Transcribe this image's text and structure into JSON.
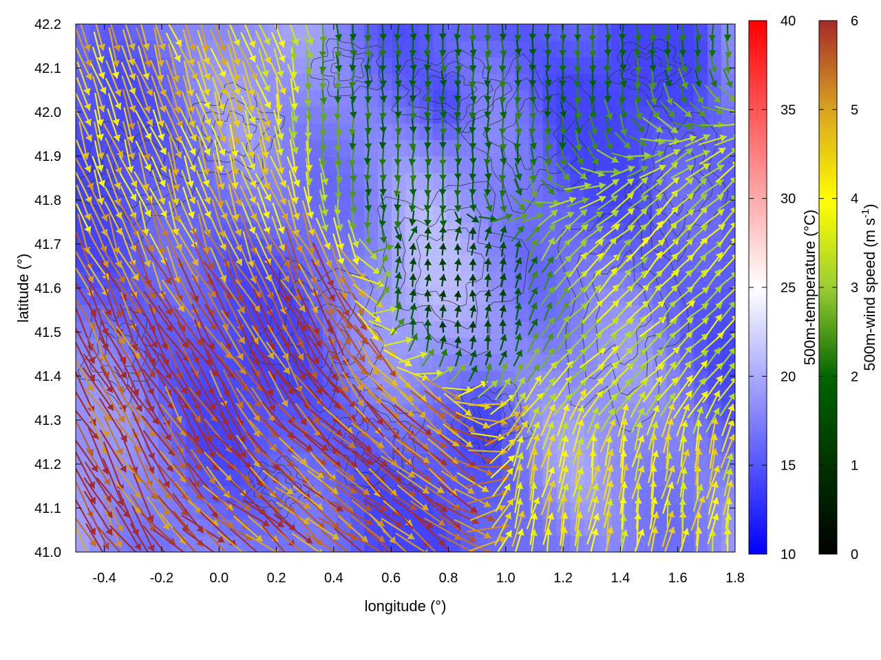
{
  "chart_data": {
    "type": "heatmap",
    "title": "",
    "xlabel": "longitude (°)",
    "ylabel": "latitude (°)",
    "xlim": [
      -0.5,
      1.8
    ],
    "ylim": [
      41.0,
      42.2
    ],
    "xticks": [
      "-0.4",
      "-0.2",
      "0.0",
      "0.2",
      "0.4",
      "0.6",
      "0.8",
      "1.0",
      "1.2",
      "1.4",
      "1.6",
      "1.8"
    ],
    "yticks": [
      "41.0",
      "41.1",
      "41.2",
      "41.3",
      "41.4",
      "41.5",
      "41.6",
      "41.7",
      "41.8",
      "41.9",
      "42.0",
      "42.1",
      "42.2"
    ],
    "grid": true,
    "temperature_colorbar": {
      "label": "500m-temperature (°C)",
      "range": [
        10,
        40
      ],
      "ticks": [
        "10",
        "15",
        "20",
        "25",
        "30",
        "35",
        "40"
      ],
      "colors": [
        "#0000ff",
        "#ffffff",
        "#ff0000"
      ]
    },
    "wind_colorbar": {
      "label": "500m-wind speed (m s-1)",
      "label_main": "500m-wind speed (m s",
      "label_sup": "-1",
      "label_end": ")",
      "range": [
        0,
        6
      ],
      "ticks": [
        "0",
        "1",
        "2",
        "3",
        "4",
        "5",
        "6"
      ],
      "colors": [
        "#000000",
        "#006400",
        "#9acd32",
        "#ffff00",
        "#daa520",
        "#a52a2a"
      ]
    },
    "series": [
      {
        "kind": "temperature_field",
        "typical_range": [
          14,
          21
        ]
      },
      {
        "kind": "wind_vectors",
        "regions": [
          {
            "area": "northwest",
            "lon": [
              -0.5,
              0.3
            ],
            "lat": [
              41.6,
              42.2
            ],
            "direction_deg": 160,
            "speed": 4.5
          },
          {
            "area": "west-central",
            "lon": [
              -0.5,
              0.5
            ],
            "lat": [
              41.3,
              41.7
            ],
            "direction_deg": 150,
            "speed": 5.8
          },
          {
            "area": "south-central",
            "lon": [
              0.2,
              0.9
            ],
            "lat": [
              41.0,
              41.35
            ],
            "direction_deg": 130,
            "speed": 5.5
          },
          {
            "area": "north-central",
            "lon": [
              0.3,
              1.4
            ],
            "lat": [
              41.75,
              42.2
            ],
            "direction_deg": 180,
            "speed": 2.0
          },
          {
            "area": "center",
            "lon": [
              0.6,
              1.2
            ],
            "lat": [
              41.45,
              41.75
            ],
            "direction_deg": 0,
            "speed": 1.0
          },
          {
            "area": "east",
            "lon": [
              1.0,
              1.8
            ],
            "lat": [
              41.35,
              41.9
            ],
            "direction_deg": 45,
            "speed": 3.5
          },
          {
            "area": "southeast",
            "lon": [
              1.0,
              1.8
            ],
            "lat": [
              41.0,
              41.3
            ],
            "direction_deg": 10,
            "speed": 4.0
          }
        ]
      },
      {
        "kind": "terrain_contours",
        "color": "#333333"
      }
    ]
  }
}
